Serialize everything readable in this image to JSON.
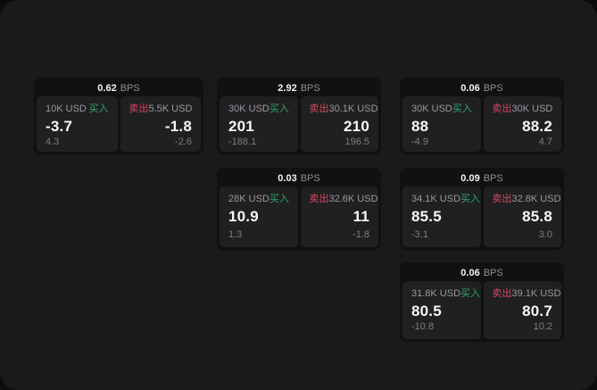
{
  "labels": {
    "bps_unit": "BPS",
    "buy": "买入",
    "sell": "卖出"
  },
  "colors": {
    "buy_green": "#2fa566",
    "sell_red": "#d4495f",
    "surface_bg": "#1a1a1b",
    "card_bg": "#111112",
    "panel_bg": "#202022"
  },
  "cards": [
    {
      "bps": "0.62",
      "grid": {
        "col": 1,
        "row": 1
      },
      "buy": {
        "amount": "10K USD",
        "value": "-3.7",
        "delta": "4.3"
      },
      "sell": {
        "amount": "5.5K USD",
        "value": "-1.8",
        "delta": "-2.6"
      }
    },
    {
      "bps": "2.92",
      "grid": {
        "col": 2,
        "row": 1
      },
      "buy": {
        "amount": "30K USD",
        "value": "201",
        "delta": "-188.1"
      },
      "sell": {
        "amount": "30.1K USD",
        "value": "210",
        "delta": "196.5"
      }
    },
    {
      "bps": "0.06",
      "grid": {
        "col": 3,
        "row": 1
      },
      "buy": {
        "amount": "30K USD",
        "value": "88",
        "delta": "-4.9"
      },
      "sell": {
        "amount": "30K USD",
        "value": "88.2",
        "delta": "4.7"
      }
    },
    {
      "bps": "0.03",
      "grid": {
        "col": 2,
        "row": 2
      },
      "buy": {
        "amount": "28K USD",
        "value": "10.9",
        "delta": "1.3"
      },
      "sell": {
        "amount": "32.6K USD",
        "value": "11",
        "delta": "-1.8"
      }
    },
    {
      "bps": "0.09",
      "grid": {
        "col": 3,
        "row": 2
      },
      "buy": {
        "amount": "34.1K USD",
        "value": "85.5",
        "delta": "-3.1"
      },
      "sell": {
        "amount": "32.8K USD",
        "value": "85.8",
        "delta": "3.0"
      }
    },
    {
      "bps": "0.06",
      "grid": {
        "col": 3,
        "row": 3
      },
      "buy": {
        "amount": "31.8K USD",
        "value": "80.5",
        "delta": "-10.8"
      },
      "sell": {
        "amount": "39.1K USD",
        "value": "80.7",
        "delta": "10.2"
      }
    }
  ]
}
